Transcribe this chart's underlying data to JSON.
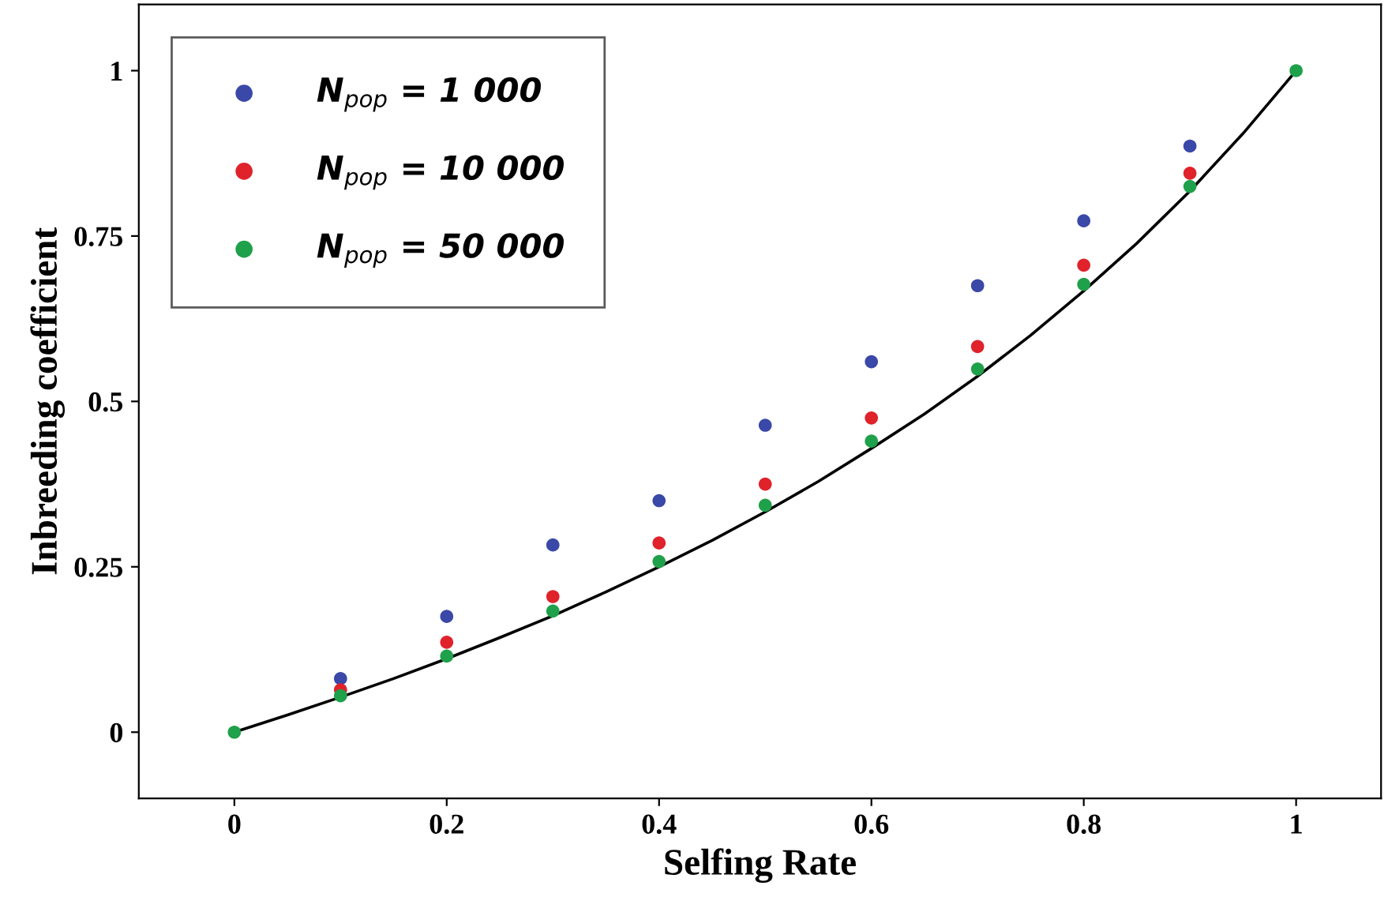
{
  "chart_data": {
    "type": "scatter",
    "xlabel": "Selfing Rate",
    "ylabel": "Inbreeding coefficient",
    "xlim": [
      -0.09,
      1.08
    ],
    "ylim": [
      -0.1,
      1.1
    ],
    "xticks": [
      0,
      0.2,
      0.4,
      0.6,
      0.8,
      1
    ],
    "yticks": [
      0,
      0.25,
      0.5,
      0.75,
      1
    ],
    "grid": false,
    "legend": "top left",
    "marker": "circle",
    "series": [
      {
        "name": "N$_{pop}$ = 1 000",
        "color": "#3a48a8",
        "x": [
          0.1,
          0.2,
          0.3,
          0.4,
          0.5,
          0.6,
          0.7,
          0.8,
          0.9
        ],
        "values": [
          0.081,
          0.175,
          0.283,
          0.35,
          0.464,
          0.56,
          0.675,
          0.773,
          0.886
        ]
      },
      {
        "name": "N$_{pop}$ = 10 000",
        "color": "#e0222a",
        "x": [
          0.1,
          0.2,
          0.3,
          0.4,
          0.5,
          0.6,
          0.7,
          0.8,
          0.9
        ],
        "values": [
          0.064,
          0.136,
          0.205,
          0.286,
          0.375,
          0.475,
          0.583,
          0.706,
          0.845
        ]
      },
      {
        "name": "N$_{pop}$ = 50 000",
        "color": "#1fa04a",
        "x": [
          0,
          0.1,
          0.2,
          0.3,
          0.4,
          0.5,
          0.6,
          0.7,
          0.8,
          0.9,
          1
        ],
        "values": [
          0,
          0.055,
          0.115,
          0.183,
          0.258,
          0.343,
          0.44,
          0.549,
          0.677,
          0.825,
          1
        ]
      },
      {
        "type": "line",
        "color": "#000000",
        "marker": "none",
        "line_style": "solid",
        "x": [
          0,
          0.05,
          0.1,
          0.15,
          0.2,
          0.25,
          0.3,
          0.35,
          0.4,
          0.45,
          0.5,
          0.55,
          0.6,
          0.65,
          0.7,
          0.75,
          0.8,
          0.85,
          0.9,
          0.95,
          1
        ],
        "values": [
          0,
          0.026,
          0.053,
          0.081,
          0.111,
          0.143,
          0.176,
          0.212,
          0.25,
          0.29,
          0.333,
          0.379,
          0.429,
          0.481,
          0.538,
          0.6,
          0.667,
          0.739,
          0.818,
          0.905,
          1
        ]
      }
    ]
  }
}
